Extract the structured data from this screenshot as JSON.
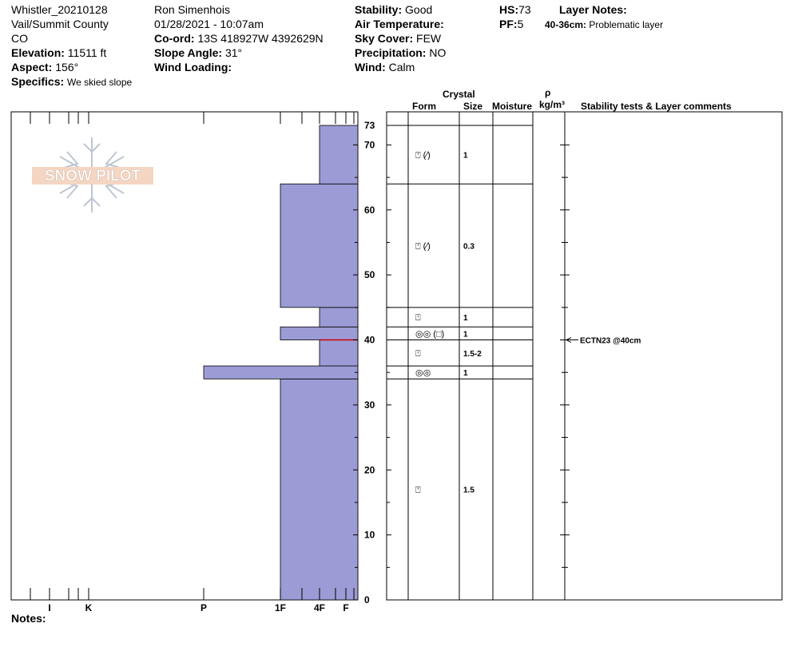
{
  "header": {
    "site": "Whistler_20210128",
    "location": "Vail/Summit County",
    "state": "CO",
    "elevation_label": "Elevation:",
    "elevation_value": "11511 ft",
    "aspect_label": "Aspect:",
    "aspect_value": "156°",
    "specifics_label": "Specifics:",
    "specifics_value": "We skied slope",
    "observer": "Ron Simenhois",
    "datetime": "01/28/2021 - 10:07am",
    "coord_label": "Co-ord:",
    "coord_value": "13S 418927W 4392629N",
    "slope_label": "Slope Angle:",
    "slope_value": "31°",
    "wind_loading_label": "Wind Loading:",
    "stability_label": "Stability:",
    "stability_value": "Good",
    "air_temp_label": "Air Temperature:",
    "sky_label": "Sky Cover:",
    "sky_value": "FEW",
    "precip_label": "Precipitation:",
    "precip_value": "NO",
    "wind_label": "Wind:",
    "wind_value": "Calm",
    "hs_label": "HS:",
    "hs_value": "73",
    "pf_label": "PF:",
    "pf_value": "5",
    "layer_notes_label": "Layer Notes:",
    "layer_note_range": "40-36cm:",
    "layer_note_text": "Problematic layer"
  },
  "logo_text": "SNOW PILOT",
  "notes_label": "Notes:",
  "columns": {
    "crystal": "Crystal",
    "form": "Form",
    "size": "Size",
    "moisture": "Moisture",
    "rho": "ρ",
    "density_unit": "kg/m³",
    "stability": "Stability tests & Layer comments"
  },
  "colors": {
    "hardness_fill": "#9b9bd6",
    "weak_layer_line": "#cc0000"
  },
  "chart_data": {
    "type": "bar",
    "orientation": "horizontal",
    "y_axis_label": "",
    "ylim": [
      0,
      73
    ],
    "y_ticks": [
      "0",
      "10",
      "20",
      "30",
      "40",
      "50",
      "60",
      "70",
      "73"
    ],
    "hardness_scale": [
      "I",
      "K",
      "P",
      "1F",
      "4F",
      "F"
    ],
    "layers": [
      {
        "bottom": 0,
        "top": 34,
        "hardness": "1F"
      },
      {
        "bottom": 34,
        "top": 36,
        "hardness": "P"
      },
      {
        "bottom": 36,
        "top": 40,
        "hardness": "4F"
      },
      {
        "bottom": 40,
        "top": 42,
        "hardness": "1F"
      },
      {
        "bottom": 42,
        "top": 45,
        "hardness": "4F"
      },
      {
        "bottom": 45,
        "top": 64,
        "hardness": "1F"
      },
      {
        "bottom": 64,
        "top": 73,
        "hardness": "4F"
      }
    ],
    "crystal_layers": [
      {
        "bottom": 0,
        "top": 34,
        "form": "⍞",
        "size": "1.5"
      },
      {
        "bottom": 34,
        "top": 36,
        "form": "◎◎",
        "size": "1"
      },
      {
        "bottom": 36,
        "top": 40,
        "form": "⍞",
        "size": "1.5-2"
      },
      {
        "bottom": 40,
        "top": 42,
        "form": "◎◎ (□)",
        "size": "1"
      },
      {
        "bottom": 42,
        "top": 45,
        "form": "⍞",
        "size": "1"
      },
      {
        "bottom": 45,
        "top": 64,
        "form": "⍞ (⁄)",
        "size": "0.3"
      },
      {
        "bottom": 64,
        "top": 73,
        "form": "⍞ (⁄)",
        "size": "1"
      }
    ],
    "weak_layer_depth": 40,
    "stability_tests": [
      {
        "depth": 40,
        "text": "ECTN23 @40cm"
      }
    ]
  }
}
